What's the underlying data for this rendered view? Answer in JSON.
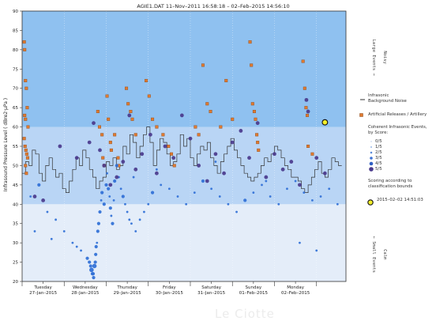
{
  "chart_data": {
    "type": "scatter",
    "title": "AGIE1.DAT   11–Nov–2011 16:58:18  –  02–Feb–2015 14:56:10",
    "ylabel": "Infrasound Pressure Level  ( dBre2·μPa )",
    "ylim": [
      20,
      90
    ],
    "yticks": [
      20,
      25,
      30,
      35,
      40,
      45,
      50,
      55,
      60,
      65,
      70,
      75,
      80,
      85,
      90
    ],
    "xlim": [
      0,
      7.7
    ],
    "day_ticks": [
      {
        "day": "Tuesday",
        "date": "27–Jan–2015"
      },
      {
        "day": "Wednesday",
        "date": "28–Jan–2015"
      },
      {
        "day": "Thursday",
        "date": "29–Jan–2015"
      },
      {
        "day": "Friday",
        "date": "30–Jan–2015"
      },
      {
        "day": "Saturday",
        "date": "31–Jan–2015"
      },
      {
        "day": "Sunday",
        "date": "01–Feb–2015"
      },
      {
        "day": "Monday",
        "date": "02–Feb–2015"
      }
    ],
    "bands": [
      {
        "from": 20,
        "to": 40,
        "color": "#e4edf9"
      },
      {
        "from": 40,
        "to": 60,
        "color": "#b9d5f5"
      },
      {
        "from": 60,
        "to": 90,
        "color": "#8fc1f0"
      }
    ],
    "right_annotations": [
      {
        "text": "Noisy",
        "y": 78
      },
      {
        "text": "Large Events →",
        "y": 78
      },
      {
        "text": "Calm",
        "y": 27
      },
      {
        "text": "← Small Events",
        "y": 27
      }
    ],
    "series": [
      {
        "name": "Infrasonic Background Noise",
        "kind": "step",
        "color": "#333333",
        "x": [
          0.0,
          0.08,
          0.16,
          0.24,
          0.32,
          0.4,
          0.48,
          0.56,
          0.64,
          0.72,
          0.8,
          0.88,
          0.96,
          1.04,
          1.12,
          1.2,
          1.28,
          1.36,
          1.44,
          1.52,
          1.6,
          1.68,
          1.76,
          1.84,
          1.92,
          2.0,
          2.08,
          2.16,
          2.24,
          2.32,
          2.4,
          2.48,
          2.56,
          2.64,
          2.72,
          2.8,
          2.88,
          2.96,
          3.04,
          3.12,
          3.2,
          3.28,
          3.36,
          3.44,
          3.52,
          3.6,
          3.68,
          3.76,
          3.84,
          3.92,
          4.0,
          4.08,
          4.16,
          4.24,
          4.32,
          4.4,
          4.48,
          4.56,
          4.64,
          4.72,
          4.8,
          4.88,
          4.96,
          5.04,
          5.12,
          5.2,
          5.28,
          5.36,
          5.44,
          5.52,
          5.6,
          5.68,
          5.76,
          5.84,
          5.92,
          6.0,
          6.08,
          6.16,
          6.24,
          6.32,
          6.4,
          6.48,
          6.56,
          6.64,
          6.72,
          6.8,
          6.88,
          6.96,
          7.04,
          7.12,
          7.2,
          7.28,
          7.36,
          7.44,
          7.52
        ],
        "y": [
          48,
          51,
          50,
          54,
          53,
          48,
          46,
          50,
          52,
          49,
          47,
          48,
          44,
          43,
          46,
          49,
          52,
          50,
          54,
          52,
          49,
          47,
          44,
          46,
          47,
          51,
          50,
          52,
          49,
          50,
          55,
          53,
          58,
          56,
          52,
          55,
          58,
          60,
          56,
          50,
          54,
          57,
          56,
          53,
          50,
          51,
          53,
          58,
          55,
          57,
          52,
          50,
          53,
          55,
          54,
          56,
          52,
          50,
          48,
          51,
          53,
          55,
          57,
          54,
          52,
          50,
          48,
          47,
          46,
          47,
          48,
          50,
          52,
          51,
          53,
          55,
          54,
          52,
          50,
          49,
          47,
          47,
          46,
          44,
          43,
          45,
          47,
          49,
          51,
          48,
          47,
          49,
          52,
          51,
          50
        ]
      },
      {
        "name": "Artificial Releases / Artillery",
        "kind": "square",
        "color": "#e07a30",
        "x": [
          0.05,
          0.06,
          0.08,
          0.1,
          0.12,
          0.06,
          0.08,
          0.14,
          0.05,
          0.07,
          0.09,
          0.11,
          0.13,
          0.08,
          0.1,
          1.8,
          1.84,
          1.9,
          1.92,
          1.95,
          2.02,
          2.05,
          2.1,
          2.12,
          2.2,
          2.28,
          2.3,
          2.48,
          2.52,
          2.58,
          2.62,
          2.7,
          2.95,
          3.02,
          3.1,
          3.2,
          3.35,
          3.48,
          3.55,
          3.62,
          4.12,
          4.2,
          4.3,
          4.4,
          4.48,
          4.72,
          4.85,
          5.0,
          5.42,
          5.45,
          5.48,
          5.52,
          5.55,
          5.58,
          5.6,
          5.62,
          6.68,
          6.72,
          6.75,
          6.78,
          6.8,
          6.9
        ],
        "y": [
          82,
          80,
          72,
          70,
          65,
          63,
          62,
          60,
          57,
          55,
          54,
          53,
          52,
          50,
          48,
          64,
          60,
          58,
          52,
          50,
          68,
          62,
          56,
          54,
          58,
          52,
          50,
          70,
          66,
          64,
          62,
          58,
          72,
          68,
          62,
          60,
          58,
          55,
          53,
          50,
          60,
          58,
          76,
          66,
          64,
          60,
          72,
          62,
          82,
          76,
          66,
          64,
          62,
          58,
          56,
          54,
          77,
          70,
          65,
          63,
          55,
          53
        ]
      },
      {
        "name": "Coherent Infrasonic Events",
        "kind": "dot",
        "color": "#2f6fd6",
        "x": [
          0.2,
          0.4,
          0.6,
          0.8,
          1.0,
          1.2,
          1.4,
          1.55,
          1.6,
          1.63,
          1.65,
          1.67,
          1.69,
          1.7,
          1.72,
          1.74,
          1.75,
          1.76,
          1.78,
          1.8,
          1.82,
          1.85,
          1.88,
          1.9,
          1.95,
          2.0,
          2.02,
          2.05,
          2.08,
          2.1,
          2.12,
          2.15,
          2.18,
          2.2,
          2.25,
          2.3,
          2.35,
          2.4,
          2.45,
          2.5,
          2.55,
          2.6,
          2.7,
          2.8,
          2.9,
          3.0,
          3.1,
          3.3,
          3.5,
          3.7,
          3.9,
          4.1,
          4.3,
          4.5,
          4.7,
          4.9,
          5.1,
          5.3,
          5.5,
          5.7,
          5.9,
          6.1,
          6.3,
          6.5,
          6.7,
          6.9,
          7.1,
          7.3,
          7.5,
          0.3,
          0.7,
          1.3,
          2.65,
          3.2,
          4.6,
          5.8,
          6.6,
          7.0
        ],
        "y": [
          42,
          45,
          38,
          36,
          33,
          30,
          28,
          26,
          25,
          24,
          23,
          22,
          22,
          21,
          24,
          25,
          27,
          29,
          30,
          33,
          35,
          38,
          41,
          43,
          40,
          45,
          48,
          44,
          42,
          39,
          37,
          35,
          41,
          46,
          50,
          47,
          44,
          42,
          40,
          38,
          36,
          35,
          33,
          36,
          38,
          40,
          43,
          45,
          44,
          42,
          40,
          43,
          46,
          44,
          42,
          40,
          38,
          41,
          43,
          45,
          42,
          40,
          44,
          46,
          43,
          41,
          42,
          44,
          40,
          33,
          31,
          29,
          47,
          49,
          51,
          46,
          30,
          28
        ],
        "sizes": [
          2,
          3,
          2,
          2,
          2,
          2,
          2,
          3,
          3,
          3,
          4,
          3,
          3,
          3,
          4,
          3,
          3,
          3,
          2,
          3,
          3,
          3,
          2,
          3,
          3,
          3,
          2,
          3,
          2,
          3,
          2,
          3,
          2,
          3,
          3,
          2,
          2,
          3,
          2,
          2,
          2,
          2,
          2,
          2,
          2,
          2,
          3,
          2,
          2,
          2,
          2,
          2,
          3,
          2,
          2,
          2,
          2,
          3,
          2,
          2,
          2,
          2,
          2,
          2,
          2,
          2,
          2,
          2,
          2,
          2,
          2,
          2,
          2,
          2,
          2,
          2,
          2,
          2
        ]
      },
      {
        "name": "Large Coherent Events",
        "kind": "dot",
        "color": "#4a3a8c",
        "x": [
          0.3,
          0.5,
          0.9,
          1.3,
          1.6,
          1.7,
          1.85,
          1.95,
          2.1,
          2.25,
          2.4,
          2.55,
          2.7,
          2.85,
          3.05,
          3.2,
          3.4,
          3.6,
          3.8,
          4.0,
          4.2,
          4.4,
          4.6,
          4.8,
          5.0,
          5.2,
          5.4,
          5.6,
          5.8,
          6.0,
          6.2,
          6.4,
          6.6,
          6.76,
          6.8,
          7.0,
          7.2
        ],
        "y": [
          42,
          41,
          55,
          52,
          56,
          61,
          54,
          50,
          45,
          47,
          51,
          63,
          49,
          53,
          58,
          48,
          55,
          52,
          63,
          57,
          50,
          46,
          53,
          48,
          56,
          59,
          52,
          61,
          47,
          53,
          49,
          51,
          45,
          67,
          64,
          52,
          48
        ]
      }
    ],
    "highlight": {
      "x": 7.2,
      "y": 61.2,
      "label": "2015–02–02 14:51:03"
    },
    "legend": {
      "placement": "right",
      "items": [
        {
          "key": "noise",
          "label": "Infrasonic\nBackground Noise"
        },
        {
          "key": "artificial",
          "label": "Artificial Releases / Artillery"
        },
        {
          "key": "coherent_head",
          "label": "Coherent Infrasonic Events,\nby Score:"
        },
        {
          "key": "s0",
          "label": "0/5"
        },
        {
          "key": "s1",
          "label": "1/5"
        },
        {
          "key": "s2",
          "label": "2/5"
        },
        {
          "key": "s3",
          "label": "3/5"
        },
        {
          "key": "s4",
          "label": "4/5"
        },
        {
          "key": "s5",
          "label": "5/5"
        },
        {
          "key": "scoring",
          "label": "Scoring according to\nclassification bounds"
        },
        {
          "key": "highlight",
          "label": "2015–02–02 14:51:03"
        }
      ]
    }
  },
  "watermark": "Le Ciotte"
}
